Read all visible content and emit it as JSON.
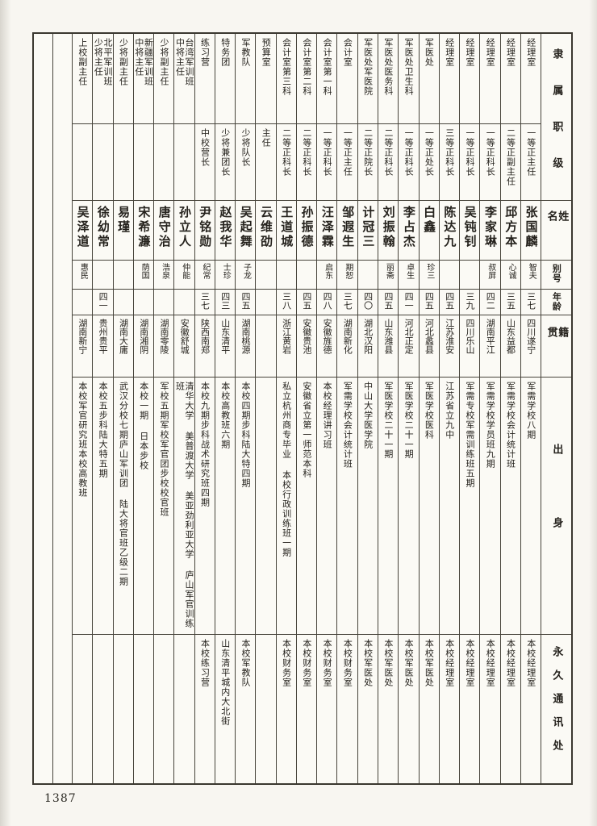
{
  "page": {
    "number": "1387"
  },
  "headers": {
    "affiliation_rank": "隶属职级",
    "name": "姓名",
    "alias": "别号",
    "age": "年龄",
    "native_place": "籍贯",
    "background": "出身",
    "address": "永久通讯处"
  },
  "table": {
    "empty_column_count": 2
  },
  "people": [
    {
      "unit": "经理室",
      "rank": "一等正主任",
      "name": "张国麟",
      "alias": "智夫",
      "age": "三七",
      "native": "四川遂宁",
      "background": "军需学校八期",
      "address": "本校经理室"
    },
    {
      "unit": "经理室",
      "rank": "二等正副主任",
      "name": "邱方本",
      "alias": "心诚",
      "age": "三五",
      "native": "山东益都",
      "background": "军需学校会计统计班",
      "address": "本校经理室"
    },
    {
      "unit": "经理室",
      "rank": "一等正科长",
      "name": "李家琳",
      "alias": "叔屏",
      "age": "四二",
      "native": "湖南平江",
      "background": "军需学校学员班九期",
      "address": "本校经理室"
    },
    {
      "unit": "经理室",
      "rank": "一等正科长",
      "name": "吴钝钊",
      "alias": "",
      "age": "三九",
      "native": "四川乐山",
      "background": "军需专校军需训练班五期",
      "address": "本校经理室"
    },
    {
      "unit": "经理室",
      "rank": "三等正科长",
      "name": "陈达九",
      "alias": "",
      "age": "四五",
      "native": "江苏淮安",
      "background": "江苏省立九中",
      "address": "本校经理室"
    },
    {
      "unit": "军医处",
      "rank": "一等正处长",
      "name": "白鑫",
      "alias": "珍三",
      "age": "四五",
      "native": "河北蠡县",
      "background": "军医学校医科",
      "address": "本校军医处"
    },
    {
      "unit": "军医处卫生科",
      "rank": "一等正科长",
      "name": "李占杰",
      "alias": "卓生",
      "age": "四一",
      "native": "河北正定",
      "background": "军医学校二十一期",
      "address": "本校军医处"
    },
    {
      "unit": "军医处医务科",
      "rank": "二等正科长",
      "name": "刘振翰",
      "alias": "丽斋",
      "age": "四五",
      "native": "山东潍县",
      "background": "军医学校二十一期",
      "address": "本校军医处"
    },
    {
      "unit": "军医处军医院",
      "rank": "二等正院长",
      "name": "计冠三",
      "alias": "",
      "age": "四〇",
      "native": "湖北汉阳",
      "background": "中山大学医学院",
      "address": "本校军医处"
    },
    {
      "unit": "会计室",
      "rank": "一等正主任",
      "name": "邹遐生",
      "alias": "期恕",
      "age": "三七",
      "native": "湖南新化",
      "background": "军需学校会计统计班",
      "address": "本校财务室"
    },
    {
      "unit": "会计室第一科",
      "rank": "一等正科长",
      "name": "汪泽霖",
      "alias": "启东",
      "age": "四八",
      "native": "安徽旌德",
      "background": "本校经理讲习班",
      "address": "本校财务室"
    },
    {
      "unit": "会计室第二科",
      "rank": "二等正科长",
      "name": "孙振德",
      "alias": "",
      "age": "四五",
      "native": "安徽贵池",
      "background": "安徽省立第一师范本科",
      "address": "本校财务室"
    },
    {
      "unit": "会计室第三科",
      "rank": "二等正科长",
      "name": "王道城",
      "alias": "",
      "age": "三八",
      "native": "浙江黄岩",
      "background": "私立杭州商专毕业 本校行政训练班一期",
      "address": "本校财务室"
    },
    {
      "unit": "预算室",
      "rank": "主任",
      "name": "云维劭",
      "alias": "",
      "age": "",
      "native": "",
      "background": "",
      "address": ""
    },
    {
      "unit": "军教队",
      "rank": "少将队长",
      "name": "吴起舞",
      "alias": "子龙",
      "age": "四五",
      "native": "湖南桃源",
      "background": "本校四期步科陆大特四期",
      "address": "本校军教队"
    },
    {
      "unit": "特务团",
      "rank": "少将兼团长",
      "name": "赵我华",
      "alias": "士珍",
      "age": "四三",
      "native": "山东清平",
      "background": "本校高教班六期",
      "address": "山东清平城内大北街"
    },
    {
      "unit": "练习营",
      "rank": "中校营长",
      "name": "尹铭勋",
      "alias": "纪常",
      "age": "三七",
      "native": "陕西南郑",
      "background": "本校九期步科战术研究班四期",
      "address": "本校练习营"
    },
    {
      "unit": "台湾军训班\n中将主任",
      "rank": "",
      "name": "孙立人",
      "alias": "仲能",
      "age": "",
      "native": "安徽舒城",
      "background": "清华大学 美普渡大学 美亚劲利亚大学 庐山军官训练班",
      "address": ""
    },
    {
      "unit": "少将副主任",
      "rank": "",
      "name": "唐守治",
      "alias": "浩泉",
      "age": "",
      "native": "湖南零陵",
      "background": "军校五期军校军官团步校校官班",
      "address": ""
    },
    {
      "unit": "新疆军训班\n中将主任",
      "rank": "",
      "name": "宋希濂",
      "alias": "荫国",
      "age": "",
      "native": "湖南湘阴",
      "background": "本校一期 日本步校",
      "address": ""
    },
    {
      "unit": "少将副主任",
      "rank": "",
      "name": "易瑾",
      "alias": "",
      "age": "",
      "native": "湖南大庸",
      "background": "武汉分校七期庐山军训团 陆大将官班乙级二期",
      "address": ""
    },
    {
      "unit": "北平军训班\n少将主任",
      "rank": "",
      "name": "徐幼常",
      "alias": "",
      "age": "四一",
      "native": "贵州贵平",
      "background": "本校五步科陆大特五期",
      "address": ""
    },
    {
      "unit": "上校副主任",
      "rank": "",
      "name": "吴泽道",
      "alias": "惠民",
      "age": "",
      "native": "湖南新宁",
      "background": "本校军官研究班本校高教班",
      "address": ""
    }
  ]
}
